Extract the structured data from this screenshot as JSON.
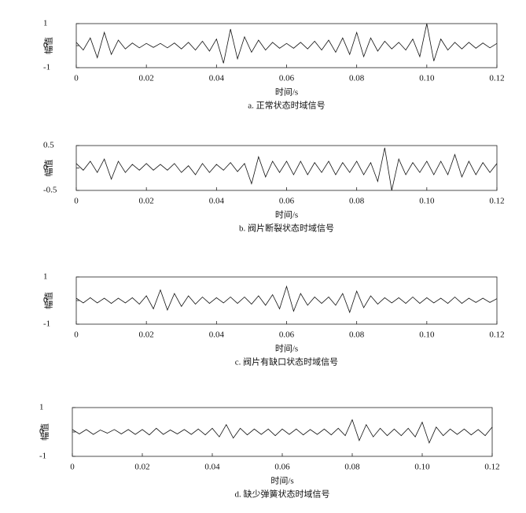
{
  "chart_data": [
    {
      "type": "line",
      "caption": "a. 正常状态时域信号",
      "xlabel": "时间/s",
      "ylabel": "幅值",
      "color": "#111111",
      "x": [
        0,
        0.002,
        0.004,
        0.006,
        0.008,
        0.01,
        0.012,
        0.014,
        0.016,
        0.018,
        0.02,
        0.022,
        0.024,
        0.026,
        0.028,
        0.03,
        0.032,
        0.034,
        0.036,
        0.038,
        0.04,
        0.042,
        0.044,
        0.046,
        0.048,
        0.05,
        0.052,
        0.054,
        0.056,
        0.058,
        0.06,
        0.062,
        0.064,
        0.066,
        0.068,
        0.07,
        0.072,
        0.074,
        0.076,
        0.078,
        0.08,
        0.082,
        0.084,
        0.086,
        0.088,
        0.09,
        0.092,
        0.094,
        0.096,
        0.098,
        0.1,
        0.102,
        0.104,
        0.106,
        0.108,
        0.11,
        0.112,
        0.114,
        0.116,
        0.118,
        0.12
      ],
      "values": [
        0.15,
        -0.2,
        0.35,
        -0.55,
        0.6,
        -0.4,
        0.25,
        -0.15,
        0.12,
        -0.1,
        0.1,
        -0.08,
        0.1,
        -0.1,
        0.12,
        -0.15,
        0.15,
        -0.2,
        0.2,
        -0.25,
        0.3,
        -0.8,
        0.75,
        -0.6,
        0.4,
        -0.3,
        0.25,
        -0.2,
        0.15,
        -0.12,
        0.1,
        -0.12,
        0.15,
        -0.15,
        0.2,
        -0.2,
        0.25,
        -0.3,
        0.35,
        -0.4,
        0.6,
        -0.5,
        0.35,
        -0.25,
        0.2,
        -0.15,
        0.15,
        -0.2,
        0.3,
        -0.5,
        1.0,
        -0.7,
        0.3,
        -0.2,
        0.15,
        -0.15,
        0.15,
        -0.12,
        0.12,
        -0.1,
        0.1
      ],
      "xlim": [
        0,
        0.12
      ],
      "xticks": [
        0,
        0.02,
        0.04,
        0.06,
        0.08,
        {
          "value": 0.1,
          "label": "0.10"
        },
        0.12
      ],
      "ylim": [
        -1,
        1
      ],
      "yticks": [
        -1,
        0,
        1
      ]
    },
    {
      "type": "line",
      "caption": "b. 阀片断裂状态时域信号",
      "xlabel": "时间/s",
      "ylabel": "幅值",
      "color": "#111111",
      "x": [
        0,
        0.002,
        0.004,
        0.006,
        0.008,
        0.01,
        0.012,
        0.014,
        0.016,
        0.018,
        0.02,
        0.022,
        0.024,
        0.026,
        0.028,
        0.03,
        0.032,
        0.034,
        0.036,
        0.038,
        0.04,
        0.042,
        0.044,
        0.046,
        0.048,
        0.05,
        0.052,
        0.054,
        0.056,
        0.058,
        0.06,
        0.062,
        0.064,
        0.066,
        0.068,
        0.07,
        0.072,
        0.074,
        0.076,
        0.078,
        0.08,
        0.082,
        0.084,
        0.086,
        0.088,
        0.09,
        0.092,
        0.094,
        0.096,
        0.098,
        0.1,
        0.102,
        0.104,
        0.106,
        0.108,
        0.11,
        0.112,
        0.114,
        0.116,
        0.118,
        0.12
      ],
      "values": [
        0.1,
        -0.05,
        0.15,
        -0.1,
        0.2,
        -0.25,
        0.15,
        -0.1,
        0.08,
        -0.05,
        0.1,
        -0.05,
        0.08,
        -0.05,
        0.1,
        -0.1,
        0.05,
        -0.15,
        0.1,
        -0.1,
        0.08,
        -0.05,
        0.12,
        -0.08,
        0.1,
        -0.35,
        0.25,
        -0.2,
        0.15,
        -0.1,
        0.15,
        -0.15,
        0.15,
        -0.15,
        0.12,
        -0.1,
        0.15,
        -0.15,
        0.12,
        -0.1,
        0.15,
        -0.15,
        0.12,
        -0.3,
        0.45,
        -0.5,
        0.2,
        -0.15,
        0.12,
        -0.1,
        0.15,
        -0.15,
        0.15,
        -0.15,
        0.3,
        -0.2,
        0.15,
        -0.15,
        0.12,
        -0.1,
        0.1
      ],
      "xlim": [
        0,
        0.12
      ],
      "xticks": [
        0,
        0.02,
        0.04,
        0.06,
        0.08,
        {
          "value": 0.1,
          "label": "0.10"
        },
        0.12
      ],
      "ylim": [
        -0.5,
        0.5
      ],
      "yticks": [
        -0.5,
        0,
        0.5
      ]
    },
    {
      "type": "line",
      "caption": "c. 阀片有缺口状态时域信号",
      "xlabel": "时间/s",
      "ylabel": "幅值",
      "color": "#111111",
      "x": [
        0,
        0.002,
        0.004,
        0.006,
        0.008,
        0.01,
        0.012,
        0.014,
        0.016,
        0.018,
        0.02,
        0.022,
        0.024,
        0.026,
        0.028,
        0.03,
        0.032,
        0.034,
        0.036,
        0.038,
        0.04,
        0.042,
        0.044,
        0.046,
        0.048,
        0.05,
        0.052,
        0.054,
        0.056,
        0.058,
        0.06,
        0.062,
        0.064,
        0.066,
        0.068,
        0.07,
        0.072,
        0.074,
        0.076,
        0.078,
        0.08,
        0.082,
        0.084,
        0.086,
        0.088,
        0.09,
        0.092,
        0.094,
        0.096,
        0.098,
        0.1,
        0.102,
        0.104,
        0.106,
        0.108,
        0.11,
        0.112,
        0.114,
        0.116,
        0.118,
        0.12
      ],
      "values": [
        0.1,
        -0.1,
        0.12,
        -0.1,
        0.1,
        -0.12,
        0.1,
        -0.1,
        0.12,
        -0.15,
        0.2,
        -0.35,
        0.45,
        -0.4,
        0.3,
        -0.25,
        0.2,
        -0.15,
        0.15,
        -0.12,
        0.12,
        -0.1,
        0.15,
        -0.12,
        0.15,
        -0.15,
        0.2,
        -0.2,
        0.25,
        -0.35,
        0.6,
        -0.45,
        0.3,
        -0.2,
        0.15,
        -0.12,
        0.15,
        -0.2,
        0.3,
        -0.5,
        0.4,
        -0.3,
        0.2,
        -0.15,
        0.12,
        -0.1,
        0.12,
        -0.12,
        0.15,
        -0.12,
        0.12,
        -0.1,
        0.1,
        -0.12,
        0.15,
        -0.12,
        0.1,
        -0.08,
        0.1,
        -0.08,
        0.08
      ],
      "xlim": [
        0,
        0.12
      ],
      "xticks": [
        0,
        0.02,
        0.04,
        0.06,
        0.08,
        {
          "value": 0.1,
          "label": "0.10"
        },
        0.12
      ],
      "ylim": [
        -1,
        1
      ],
      "yticks": [
        -1,
        0,
        1
      ]
    },
    {
      "type": "line",
      "caption": "d. 缺少弹簧状态时域信号",
      "xlabel": "时间/s",
      "ylabel": "幅值",
      "color": "#111111",
      "x": [
        0,
        0.002,
        0.004,
        0.006,
        0.008,
        0.01,
        0.012,
        0.014,
        0.016,
        0.018,
        0.02,
        0.022,
        0.024,
        0.026,
        0.028,
        0.03,
        0.032,
        0.034,
        0.036,
        0.038,
        0.04,
        0.042,
        0.044,
        0.046,
        0.048,
        0.05,
        0.052,
        0.054,
        0.056,
        0.058,
        0.06,
        0.062,
        0.064,
        0.066,
        0.068,
        0.07,
        0.072,
        0.074,
        0.076,
        0.078,
        0.08,
        0.082,
        0.084,
        0.086,
        0.088,
        0.09,
        0.092,
        0.094,
        0.096,
        0.098,
        0.1,
        0.102,
        0.104,
        0.106,
        0.108,
        0.11,
        0.112,
        0.114,
        0.116,
        0.118,
        0.12
      ],
      "values": [
        0.1,
        -0.08,
        0.1,
        -0.1,
        0.08,
        -0.05,
        0.1,
        -0.08,
        0.1,
        -0.1,
        0.1,
        -0.12,
        0.15,
        -0.1,
        0.08,
        -0.08,
        0.1,
        -0.1,
        0.12,
        -0.12,
        0.15,
        -0.2,
        0.3,
        -0.25,
        0.15,
        -0.12,
        0.12,
        -0.1,
        0.12,
        -0.15,
        0.12,
        -0.1,
        0.12,
        -0.12,
        0.1,
        -0.1,
        0.12,
        -0.12,
        0.15,
        -0.15,
        0.5,
        -0.35,
        0.3,
        -0.2,
        0.15,
        -0.15,
        0.12,
        -0.15,
        0.15,
        -0.2,
        0.4,
        -0.45,
        0.2,
        -0.15,
        0.12,
        -0.1,
        0.12,
        -0.12,
        0.1,
        -0.15,
        0.2
      ],
      "xlim": [
        0,
        0.12
      ],
      "xticks": [
        0,
        0.02,
        0.04,
        0.06,
        0.08,
        {
          "value": 0.1,
          "label": "0.10"
        },
        0.12
      ],
      "ylim": [
        -1,
        1
      ],
      "yticks": [
        -1,
        0,
        1
      ]
    }
  ]
}
